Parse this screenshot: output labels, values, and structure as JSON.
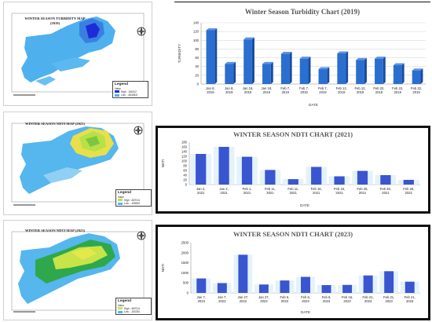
{
  "maps": [
    {
      "title_line1": "WINTER SEASON TURBIDITY MAP",
      "title_line2": "(2019)",
      "legend_heading": "Legend",
      "legend_label": "Value",
      "legend_high": "High : 154312",
      "legend_low": "Low : -82408.6",
      "colors": {
        "water": "#4fb0ee",
        "hot": "#1e2bd8",
        "mid": "#3a7fe0"
      }
    },
    {
      "title_line1": "WINTER SEASON NDTI MAP (2021)",
      "title_line2": "",
      "legend_heading": "Legend",
      "legend_label": "Value",
      "legend_high": "High : 467014",
      "legend_low": "Low : -108622",
      "colors": {
        "water": "#56b6ee",
        "hot": "#b8e04a",
        "mid": "#e8e04a"
      }
    },
    {
      "title_line1": "WINTER SEASON NDTI MAP (2023)",
      "title_line2": "",
      "legend_heading": "Legend",
      "legend_label": "Value",
      "legend_high": "High : 467014",
      "legend_low": "Low : -200251",
      "colors": {
        "water": "#56b6ee",
        "hot": "#c8e448",
        "mid": "#2ea84a"
      }
    }
  ],
  "chart_data": [
    {
      "type": "bar",
      "title": "Winter Season Turbidity Chart (2019)",
      "xlabel": "DATE",
      "ylabel": "TURBIDITY",
      "ylim": [
        0,
        140
      ],
      "yticks": [
        0,
        20,
        40,
        60,
        80,
        100,
        120,
        140
      ],
      "categories": [
        [
          "Jan 8,",
          "2019"
        ],
        [
          "Jan 8,",
          "2019"
        ],
        [
          "Jan 18,",
          "2019"
        ],
        [
          "Jan 18,",
          "2019"
        ],
        [
          "Feb 7,",
          "2019"
        ],
        [
          "Feb 7,",
          "2019"
        ],
        [
          "Feb 7,",
          "2019"
        ],
        [
          "Feb 12,",
          "2019"
        ],
        [
          "Feb 12,",
          "2019"
        ],
        [
          "Feb 22,",
          "2019"
        ],
        [
          "Feb 22,",
          "2019"
        ],
        [
          "Feb 22,",
          "2019"
        ]
      ],
      "values": [
        123,
        46,
        102,
        46,
        69,
        58,
        34,
        70,
        55,
        58,
        43,
        31
      ],
      "color": "#2a6fd0",
      "grid": true
    },
    {
      "type": "bar",
      "title": "WINTER SEASON NDTI CHART (2021)",
      "xlabel": "DATE",
      "ylabel": "NDTI",
      "ylim": [
        0,
        180
      ],
      "yticks": [
        0,
        20,
        40,
        60,
        80,
        100,
        120,
        140,
        160,
        180
      ],
      "categories": [
        [
          "Jan 2,",
          "2021"
        ],
        [
          "Jan 2,",
          "2021"
        ],
        [
          "Feb 1,",
          "2021"
        ],
        [
          "Feb 11,",
          "2021"
        ],
        [
          "Feb 11,",
          "2021"
        ],
        [
          "Feb 16,",
          "2021"
        ],
        [
          "Feb 16,",
          "2021"
        ],
        [
          "Feb 26,",
          "2021"
        ],
        [
          "Feb 26,",
          "2021"
        ],
        [
          "Feb 26,",
          "2021"
        ]
      ],
      "values": [
        130,
        160,
        118,
        62,
        23,
        75,
        35,
        58,
        40,
        20
      ],
      "color": "#3a55d0",
      "grid": false
    },
    {
      "type": "bar",
      "title": "WINTER SEASON NDTI CHART (2023)",
      "xlabel": "DATE",
      "ylabel": "NDTI",
      "ylim": [
        0,
        2500
      ],
      "yticks": [
        0,
        500,
        1000,
        1500,
        2000,
        2500
      ],
      "categories": [
        [
          "Jan 7,",
          "2023"
        ],
        [
          "Jan 7,",
          "2023"
        ],
        [
          "Jan 27,",
          "2023"
        ],
        [
          "Jan 27,",
          "2023"
        ],
        [
          "Feb 6,",
          "2023"
        ],
        [
          "Feb 6,",
          "2023"
        ],
        [
          "Feb 6,",
          "2023"
        ],
        [
          "Feb 16,",
          "2023"
        ],
        [
          "Feb 21,",
          "2023"
        ],
        [
          "Feb 21,",
          "2023"
        ],
        [
          "Feb 21,",
          "2023"
        ]
      ],
      "values": [
        720,
        490,
        1900,
        420,
        620,
        800,
        390,
        400,
        870,
        1080,
        560
      ],
      "color": "#3a55d0",
      "grid": false
    }
  ]
}
